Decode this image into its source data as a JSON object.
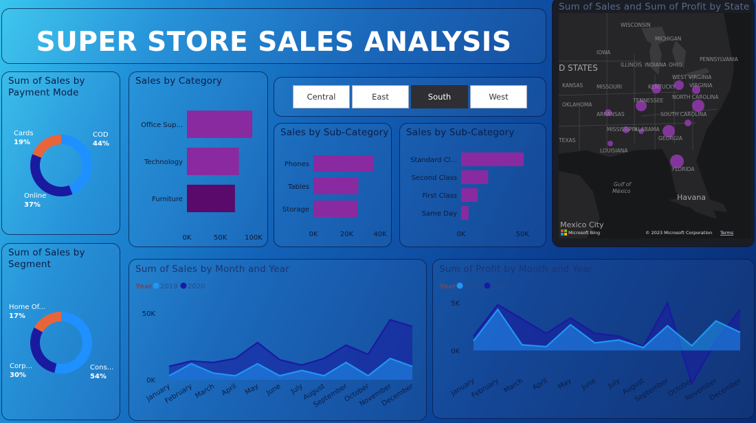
{
  "dashboard": {
    "title": "SUPER STORE SALES ANALYSIS"
  },
  "payment_panel": {
    "title": "Sum of Sales by Payment Mode"
  },
  "segment_panel": {
    "title": "Sum of Sales by Segment"
  },
  "category_panel": {
    "title": "Sales by Category"
  },
  "subcategory_panel": {
    "title": "Sales by Sub-Category"
  },
  "shipmode_panel": {
    "title": "Sales by Sub-Category"
  },
  "region_slicer": {
    "options": [
      "Central",
      "East",
      "South",
      "West"
    ],
    "selected": "South"
  },
  "map_panel": {
    "title": "Sum of Sales and Sum of Profit by State",
    "labels": {
      "wisconsin": "WISCONSIN",
      "michigan": "MICHIGAN",
      "iowa": "IOWA",
      "illinois": "ILLINOIS",
      "indiana": "INDIANA",
      "ohio": "OHIO",
      "pennsylvania": "PENNSYLVANIA",
      "states": "D STATES",
      "missouri": "MISSOURI",
      "kentucky": "KENTUCKY",
      "west_virginia": "WEST VIRGINIA",
      "virginia": "VIRGINIA",
      "kansas": "KANSAS",
      "tennessee": "TENNESSEE",
      "north_carolina": "NORTH CAROLINA",
      "oklahoma": "OKLAHOMA",
      "arkansas": "ARKANSAS",
      "south_carolina": "SOUTH CAROLINA",
      "mississippi": "MISSISSIPPI",
      "alabama": "ALABAMA",
      "georgia": "GEORGIA",
      "texas": "TEXAS",
      "louisiana": "LOUISIANA",
      "florida": "FLORIDA",
      "gulf": "Gulf of",
      "mexico_gulf": "México",
      "havana": "Havana",
      "mexico_city": "Mexico City",
      "bing": "Microsoft Bing",
      "copyright": "© 2023 Microsoft Corporation",
      "terms": "Terms"
    }
  },
  "sales_line_panel": {
    "title": "Sum of Sales by Month and Year"
  },
  "profit_line_panel": {
    "title": "Sum of Profit by Month and Year"
  },
  "colors": {
    "series_2019": "#2196f3",
    "series_2020": "#1a1aa0",
    "bar_purple": "#8a2aa0",
    "bar_dark_purple": "#5a0a6a",
    "donut_orange": "#e8653a",
    "donut_blue": "#1e90ff",
    "donut_navy": "#1a1aa0",
    "map_bubble": "#a23cc0"
  },
  "chart_data": [
    {
      "id": "payment_donut",
      "type": "pie",
      "title": "Sum of Sales by Payment Mode",
      "slices": [
        {
          "label": "COD",
          "percent": "44%",
          "value": 44
        },
        {
          "label": "Online",
          "percent": "37%",
          "value": 37
        },
        {
          "label": "Cards",
          "percent": "19%",
          "value": 19
        }
      ]
    },
    {
      "id": "segment_donut",
      "type": "pie",
      "title": "Sum of Sales by Segment",
      "slices": [
        {
          "label": "Cons...",
          "percent": "54%",
          "value": 54
        },
        {
          "label": "Corp...",
          "percent": "30%",
          "value": 30
        },
        {
          "label": "Home Of...",
          "percent": "17%",
          "value": 17
        }
      ]
    },
    {
      "id": "category_bar",
      "type": "bar",
      "orientation": "horizontal",
      "title": "Sales by Category",
      "categories": [
        "Office Sup...",
        "Technology",
        "Furniture"
      ],
      "values": [
        98000,
        78000,
        72000
      ],
      "xticks": [
        "0K",
        "50K",
        "100K"
      ],
      "xlim": [
        0,
        100000
      ]
    },
    {
      "id": "subcategory_bar",
      "type": "bar",
      "orientation": "horizontal",
      "title": "Sales by Sub-Category",
      "categories": [
        "Phones",
        "Tables",
        "Storage"
      ],
      "values": [
        36000,
        27000,
        26500
      ],
      "xticks": [
        "0K",
        "20K",
        "40K"
      ],
      "xlim": [
        0,
        40000
      ]
    },
    {
      "id": "shipmode_bar",
      "type": "bar",
      "orientation": "horizontal",
      "title": "Sales by Sub-Category",
      "categories": [
        "Standard Cl...",
        "Second Class",
        "First Class",
        "Same Day"
      ],
      "values": [
        51000,
        22000,
        13500,
        6000
      ],
      "xticks": [
        "0K",
        "50K"
      ],
      "xlim": [
        0,
        60000
      ]
    },
    {
      "id": "sales_area",
      "type": "area",
      "title": "Sum of Sales by Month and Year",
      "legend_title": "Year",
      "legend": [
        "2019",
        "2020"
      ],
      "categories": [
        "January",
        "February",
        "March",
        "April",
        "May",
        "June",
        "July",
        "August",
        "September",
        "October",
        "November",
        "December"
      ],
      "yticks": [
        "0K",
        "50K"
      ],
      "ylim": [
        0,
        50000
      ],
      "series": [
        {
          "name": "2020",
          "values": [
            10000,
            14000,
            13000,
            16000,
            28000,
            15000,
            11000,
            16000,
            26000,
            19000,
            45000,
            40000
          ]
        },
        {
          "name": "2019",
          "values": [
            3000,
            12000,
            5000,
            3000,
            12000,
            3000,
            7000,
            3000,
            13000,
            3000,
            16000,
            10000
          ]
        }
      ]
    },
    {
      "id": "profit_area",
      "type": "area",
      "title": "Sum of Profit by Month and Year",
      "legend_title": "Year",
      "legend": [
        "2019",
        "2020"
      ],
      "categories": [
        "January",
        "February",
        "March",
        "April",
        "May",
        "June",
        "July",
        "August",
        "September",
        "October",
        "November",
        "December"
      ],
      "yticks": [
        "0K",
        "5K"
      ],
      "ylim": [
        -4000,
        6000
      ],
      "series": [
        {
          "name": "2020",
          "values": [
            1500,
            4800,
            3300,
            1800,
            3400,
            1800,
            1500,
            400,
            5000,
            -3500,
            1000,
            4300
          ]
        },
        {
          "name": "2019",
          "values": [
            1000,
            4300,
            600,
            400,
            2700,
            800,
            1100,
            300,
            2600,
            500,
            3100,
            1900
          ]
        }
      ]
    }
  ]
}
